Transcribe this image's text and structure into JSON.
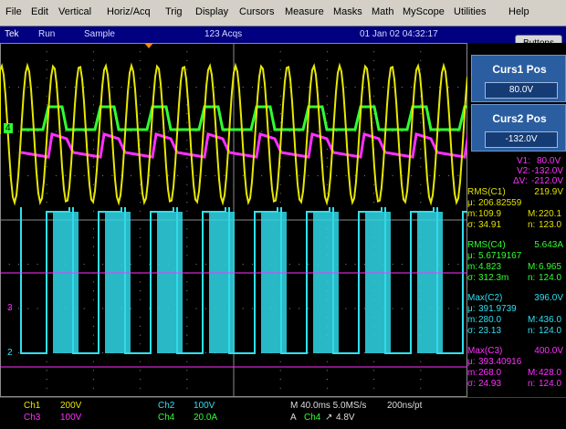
{
  "menu": [
    "File",
    "Edit",
    "Vertical",
    "Horiz/Acq",
    "Trig",
    "Display",
    "Cursors",
    "Measure",
    "Masks",
    "Math",
    "MyScope",
    "Utilities",
    "Help"
  ],
  "status": {
    "brand": "Tek",
    "mode": "Run",
    "acq": "Sample",
    "count": "123 Acqs",
    "datetime": "01 Jan 02 04:32:17"
  },
  "buttons_label": "Buttons",
  "cursors": {
    "curs1": {
      "title": "Curs1 Pos",
      "value": "80.0V"
    },
    "curs2": {
      "title": "Curs2 Pos",
      "value": "-132.0V"
    },
    "readout": {
      "v1_label": "V1:",
      "v1": "80.0V",
      "v2_label": "V2:",
      "v2": "-132.0V",
      "dv_label": "ΔV:",
      "dv": "-212.0V"
    }
  },
  "measurements": [
    {
      "name": "RMS(C1)",
      "value": "219.9V",
      "mu_label": "μ:",
      "mu": "206.82559",
      "m_label": "m:",
      "m": "109.9",
      "M_label": "M:",
      "M": "220.1",
      "sigma_label": "σ:",
      "sigma": "34.91",
      "n_label": "n:",
      "n": "123.0",
      "color": "#e0e000"
    },
    {
      "name": "RMS(C4)",
      "value": "5.643A",
      "mu_label": "μ:",
      "mu": "5.6719167",
      "m_label": "m:",
      "m": "4.823",
      "M_label": "M:",
      "M": "6.965",
      "sigma_label": "σ:",
      "sigma": "312.3m",
      "n_label": "n:",
      "n": "124.0",
      "color": "#30ff30"
    },
    {
      "name": "Max(C2)",
      "value": "396.0V",
      "mu_label": "μ:",
      "mu": "391.9739",
      "m_label": "m:",
      "m": "280.0",
      "M_label": "M:",
      "M": "436.0",
      "sigma_label": "σ:",
      "sigma": "23.13",
      "n_label": "n:",
      "n": "124.0",
      "color": "#30e0f0"
    },
    {
      "name": "Max(C3)",
      "value": "400.0V",
      "mu_label": "μ:",
      "mu": "393.40916",
      "m_label": "m:",
      "m": "268.0",
      "M_label": "M:",
      "M": "428.0",
      "sigma_label": "σ:",
      "sigma": "24.93",
      "n_label": "n:",
      "n": "124.0",
      "color": "#ff30ff"
    }
  ],
  "channels": {
    "ch1": {
      "label": "Ch1",
      "scale": "200V",
      "color": "#e8e800"
    },
    "ch2": {
      "label": "Ch2",
      "scale": "100V",
      "color": "#30e0f0"
    },
    "ch3": {
      "label": "Ch3",
      "scale": "100V",
      "color": "#ff30ff"
    },
    "ch4": {
      "label": "Ch4",
      "scale": "20.0A",
      "color": "#30ff30"
    }
  },
  "markers": {
    "ch4": "4",
    "ch3": "3",
    "ch2": "2"
  },
  "timebase": {
    "line1": "M 40.0ms 5.0MS/s",
    "rate": "200ns/pt",
    "trig_a": "A",
    "trig_ch": "Ch4",
    "trig_level": "4.8V"
  }
}
